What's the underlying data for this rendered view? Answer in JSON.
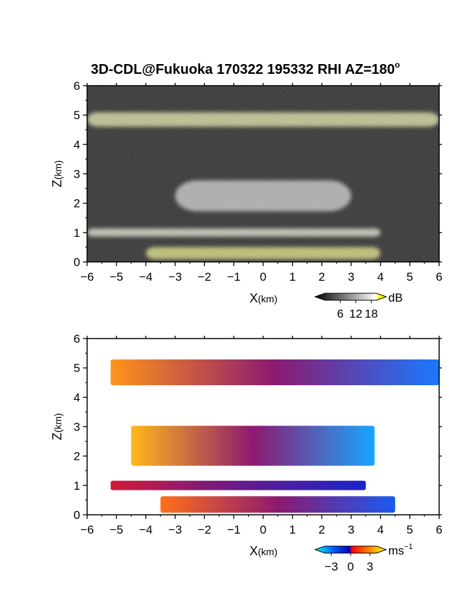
{
  "title": "3D-CDL@Fukuoka 170322 195332 RHI AZ=180",
  "title_superscript": "o",
  "chart_data": [
    {
      "type": "heatmap",
      "name": "reflectivity-panel",
      "xlabel_main": "X",
      "xlabel_unit": "(km)",
      "ylabel_main": "Z",
      "ylabel_unit": "(km)",
      "xlim": [
        -6,
        6
      ],
      "ylim": [
        0,
        6
      ],
      "x_ticks": [
        "−6",
        "−5",
        "−4",
        "−3",
        "−2",
        "−1",
        "0",
        "1",
        "2",
        "3",
        "4",
        "5",
        "6"
      ],
      "y_ticks": [
        "0",
        "1",
        "2",
        "3",
        "4",
        "5",
        "6"
      ],
      "background_color": "#2a2a2a",
      "saturation_color": "#ffff00",
      "colorbar": {
        "unit": "dB",
        "tick_labels": [
          "6",
          "12",
          "18"
        ],
        "tick_values": [
          6,
          12,
          18
        ],
        "range": [
          0,
          20
        ],
        "colors": [
          "#000000",
          "#ffffff",
          "#ffff00"
        ]
      },
      "layers": [
        {
          "x": [
            -6,
            6
          ],
          "z": [
            4.5,
            5.2
          ],
          "level": 14
        },
        {
          "x": [
            -3,
            3
          ],
          "z": [
            1.5,
            3.0
          ],
          "level": 10
        },
        {
          "x": [
            -6,
            4
          ],
          "z": [
            0.8,
            1.2
          ],
          "level": 12
        },
        {
          "x": [
            -4,
            4
          ],
          "z": [
            0,
            0.6
          ],
          "level": 16
        }
      ]
    },
    {
      "type": "heatmap",
      "name": "doppler-velocity-panel",
      "xlabel_main": "X",
      "xlabel_unit": "(km)",
      "ylabel_main": "Z",
      "ylabel_unit": "(km)",
      "xlim": [
        -6,
        6
      ],
      "ylim": [
        0,
        6
      ],
      "x_ticks": [
        "−6",
        "−5",
        "−4",
        "−3",
        "−2",
        "−1",
        "0",
        "1",
        "2",
        "3",
        "4",
        "5",
        "6"
      ],
      "y_ticks": [
        "0",
        "1",
        "2",
        "3",
        "4",
        "5",
        "6"
      ],
      "background_color": "#ffffff",
      "colorbar": {
        "unit_main": "ms",
        "unit_exp": "−1",
        "tick_labels": [
          "−3",
          "0",
          "3"
        ],
        "tick_values": [
          -3,
          0,
          3
        ],
        "range": [
          -4,
          4
        ],
        "colors": [
          "#00ffff",
          "#0060ff",
          "#0000c0",
          "#ff0000",
          "#ff8000",
          "#ffff00"
        ]
      },
      "layers": [
        {
          "x": [
            -5.2,
            6
          ],
          "z": [
            4.3,
            5.4
          ],
          "velocity_left": 2.5,
          "velocity_right": -2.5
        },
        {
          "x": [
            -4.5,
            3.8
          ],
          "z": [
            1.5,
            3.2
          ],
          "velocity_left": 3,
          "velocity_right": -3
        },
        {
          "x": [
            -5.2,
            3.5
          ],
          "z": [
            0.8,
            1.2
          ],
          "velocity_left": 0.5,
          "velocity_right": -1
        },
        {
          "x": [
            -3.5,
            4.5
          ],
          "z": [
            0,
            0.7
          ],
          "velocity_left": 2,
          "velocity_right": -2
        }
      ]
    }
  ]
}
